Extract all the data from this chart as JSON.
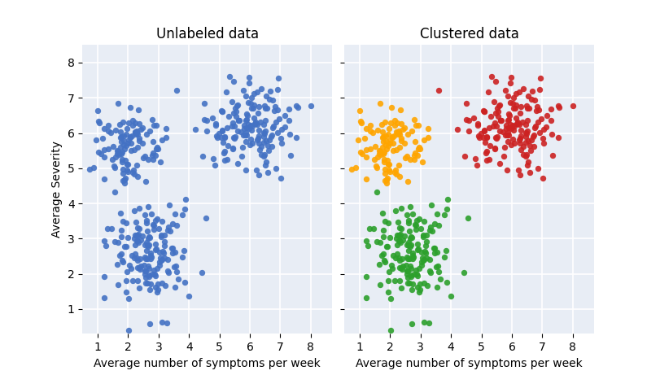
{
  "color1": "#FFA500",
  "color2": "#2CA02C",
  "color3": "#CC2222",
  "color_unlabeled": "#4472C4",
  "title_left": "Unlabeled data",
  "title_right": "Clustered data",
  "xlabel": "Average number of symptoms per week",
  "ylabel": "Average Severity",
  "xlim": [
    0.5,
    8.7
  ],
  "ylim": [
    0.3,
    8.5
  ],
  "xticks": [
    1,
    2,
    3,
    4,
    5,
    6,
    7,
    8
  ],
  "yticks": [
    1,
    2,
    3,
    4,
    5,
    6,
    7,
    8
  ],
  "marker_size": 28,
  "alpha": 0.9,
  "bg_color": "#E8EDF5",
  "seed": 7,
  "n1": 110,
  "n2": 160,
  "n3": 160,
  "c1_mean_x": 2.0,
  "c1_std_x": 0.55,
  "c1_mean_y": 5.7,
  "c1_std_y": 0.55,
  "c2_mean_x": 2.7,
  "c2_std_x": 0.65,
  "c2_mean_y": 2.7,
  "c2_std_y": 0.75,
  "c3_mean_x": 6.0,
  "c3_std_x": 0.8,
  "c3_mean_y": 6.2,
  "c3_std_y": 0.65
}
